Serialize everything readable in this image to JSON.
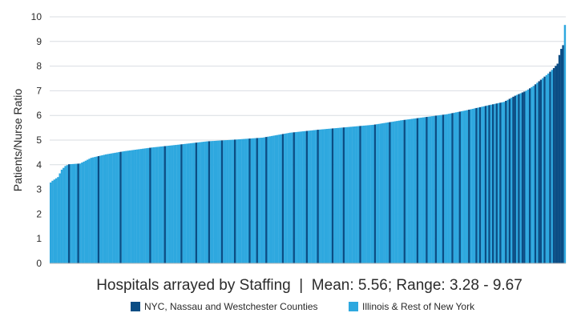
{
  "chart_data": {
    "type": "bar",
    "title": "",
    "xlabel": "Hospitals arrayed by Staffing  |  Mean: 5.56; Range: 3.28 - 9.67",
    "ylabel": "Patients/Nurse Ratio",
    "ylim": [
      0,
      10
    ],
    "yticks": [
      "0",
      "1",
      "2",
      "3",
      "4",
      "5",
      "6",
      "7",
      "8",
      "9",
      "10"
    ],
    "grid": true,
    "legend_position": "bottom",
    "bar_count": 280,
    "colors": {
      "nyc": "#0b4d84",
      "rest": "#2ea8df",
      "grid": "#d9dde2",
      "axis": "#b8b8b8"
    },
    "series": [
      {
        "name": "NYC, Nassau and Westchester Counties",
        "color": "#0b4d84"
      },
      {
        "name": "Illinois & Rest of New York",
        "color": "#2ea8df"
      }
    ],
    "profile": [
      [
        0,
        3.28
      ],
      [
        1,
        3.35
      ],
      [
        4,
        3.5
      ],
      [
        6,
        3.8
      ],
      [
        8,
        3.95
      ],
      [
        10,
        4.02
      ],
      [
        16,
        4.05
      ],
      [
        22,
        4.28
      ],
      [
        30,
        4.42
      ],
      [
        40,
        4.55
      ],
      [
        55,
        4.7
      ],
      [
        70,
        4.82
      ],
      [
        85,
        4.95
      ],
      [
        100,
        5.02
      ],
      [
        115,
        5.1
      ],
      [
        130,
        5.3
      ],
      [
        145,
        5.42
      ],
      [
        160,
        5.52
      ],
      [
        175,
        5.62
      ],
      [
        190,
        5.8
      ],
      [
        205,
        5.95
      ],
      [
        215,
        6.05
      ],
      [
        225,
        6.2
      ],
      [
        238,
        6.42
      ],
      [
        246,
        6.55
      ],
      [
        252,
        6.8
      ],
      [
        258,
        7.0
      ],
      [
        262,
        7.2
      ],
      [
        266,
        7.45
      ],
      [
        270,
        7.7
      ],
      [
        273,
        7.92
      ],
      [
        275,
        8.1
      ],
      [
        276,
        8.45
      ],
      [
        277,
        8.7
      ],
      [
        278,
        8.85
      ],
      [
        279,
        9.67
      ]
    ],
    "nyc_indices": [
      10,
      15,
      26,
      38,
      54,
      62,
      71,
      79,
      86,
      93,
      100,
      108,
      112,
      117,
      126,
      132,
      139,
      145,
      153,
      159,
      168,
      176,
      184,
      192,
      199,
      204,
      209,
      213,
      218,
      222,
      227,
      231,
      233,
      236,
      238,
      240,
      242,
      244,
      247,
      249,
      251,
      252,
      254,
      256,
      257,
      260,
      263,
      265,
      266,
      268,
      271,
      273,
      274,
      275,
      276,
      277,
      278
    ]
  }
}
